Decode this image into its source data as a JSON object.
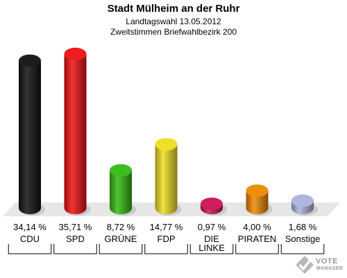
{
  "header": {
    "title": "Stadt Mülheim an der Ruhr",
    "subtitle1": "Landtagswahl 13.05.2012",
    "subtitle2": "Zweitstimmen Briefwahlbezirk 200"
  },
  "chart_data": {
    "type": "bar",
    "categories": [
      "CDU",
      "SPD",
      "GRÜNE",
      "FDP",
      "DIE LINKE",
      "PIRATEN",
      "Sonstige"
    ],
    "category_lines": [
      [
        "CDU"
      ],
      [
        "SPD"
      ],
      [
        "GRÜNE"
      ],
      [
        "FDP"
      ],
      [
        "DIE",
        "LINKE"
      ],
      [
        "PIRATEN"
      ],
      [
        "Sonstige"
      ]
    ],
    "values": [
      34.14,
      35.71,
      8.72,
      14.77,
      0.97,
      4.0,
      1.68
    ],
    "value_labels": [
      "34,14 %",
      "35,71 %",
      "8,72 %",
      "14,77 %",
      "0,97 %",
      "4,00 %",
      "1,68 %"
    ],
    "colors": [
      "#111111",
      "#ee1111",
      "#33bb11",
      "#eedd22",
      "#cc1155",
      "#ee8800",
      "#aab4dd"
    ],
    "title": "Stadt Mülheim an der Ruhr",
    "xlabel": "",
    "ylabel": "",
    "ylim": [
      0,
      36
    ]
  },
  "logo": {
    "line1": "VOTE",
    "line2": "MANAGER",
    "icon": "checkmark-ballot-icon"
  }
}
